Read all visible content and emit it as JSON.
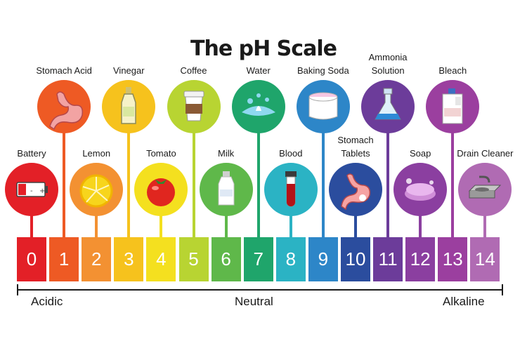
{
  "title": "The pH Scale",
  "scale": [
    {
      "value": "0",
      "label": "Battery",
      "color": "#e32027",
      "icon": "battery-icon"
    },
    {
      "value": "1",
      "label": "Stomach Acid",
      "color": "#ee5a24",
      "icon": "stomach-icon"
    },
    {
      "value": "2",
      "label": "Lemon",
      "color": "#f39132",
      "icon": "lemon-icon"
    },
    {
      "value": "3",
      "label": "Vinegar",
      "color": "#f6c21d",
      "icon": "vinegar-bottle-icon"
    },
    {
      "value": "4",
      "label": "Tomato",
      "color": "#f4e01f",
      "icon": "tomato-icon"
    },
    {
      "value": "5",
      "label": "Coffee",
      "color": "#b8d432",
      "icon": "coffee-cup-icon"
    },
    {
      "value": "6",
      "label": "Milk",
      "color": "#5fb84a",
      "icon": "milk-bottle-icon"
    },
    {
      "value": "7",
      "label": "Water",
      "color": "#1fa56b",
      "icon": "water-splash-icon"
    },
    {
      "value": "8",
      "label": "Blood",
      "color": "#2bb3c4",
      "icon": "blood-test-tube-icon"
    },
    {
      "value": "9",
      "label": "Baking Soda",
      "color": "#2d86c8",
      "icon": "baking-soda-icon"
    },
    {
      "value": "10",
      "label": "Stomach\nTablets",
      "color": "#2b4d9e",
      "icon": "stomach-tablets-icon"
    },
    {
      "value": "11",
      "label": "Ammonia\nSolution",
      "color": "#6c3c9a",
      "icon": "flask-icon"
    },
    {
      "value": "12",
      "label": "Soap",
      "color": "#8b3fa0",
      "icon": "soap-icon"
    },
    {
      "value": "13",
      "label": "Bleach",
      "color": "#9b3f9f",
      "icon": "bleach-jug-icon"
    },
    {
      "value": "14",
      "label": "Drain Cleaner",
      "color": "#b06bb3",
      "icon": "sink-icon"
    }
  ],
  "axis": {
    "left": "Acidic",
    "center": "Neutral",
    "right": "Alkaline"
  }
}
